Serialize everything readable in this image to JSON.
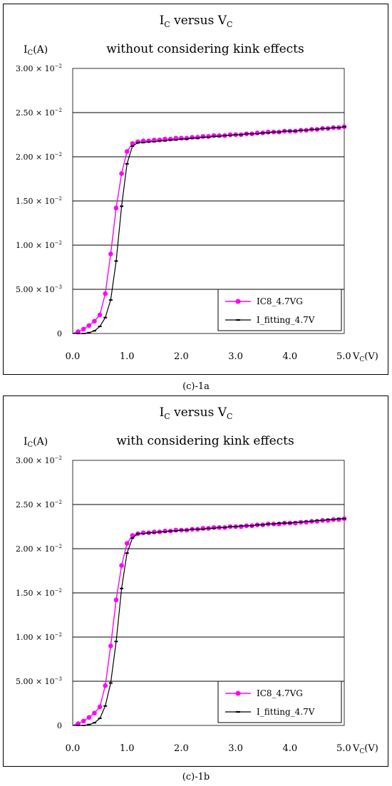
{
  "chart_data": [
    {
      "type": "line",
      "title_main": "I",
      "title_sub1": "C",
      "title_mid": " versus V",
      "title_sub2": "C",
      "subtitle": "without considering kink effects",
      "ylabel_main": "I",
      "ylabel_sub": "C",
      "ylabel_unit": "(A)",
      "xlabel_main": "V",
      "xlabel_sub": "C",
      "xlabel_unit": "(V)",
      "xlim": [
        0,
        5
      ],
      "ylim": [
        0,
        0.03
      ],
      "yticks": [
        {
          "value": 0,
          "label_main": "0",
          "label_exp": ""
        },
        {
          "value": 0.005,
          "label_main": "5.00 × 10",
          "label_exp": "−3"
        },
        {
          "value": 0.01,
          "label_main": "1.00 × 10",
          "label_exp": "−2"
        },
        {
          "value": 0.015,
          "label_main": "1.50 × 10",
          "label_exp": "−2"
        },
        {
          "value": 0.02,
          "label_main": "2.00 × 10",
          "label_exp": "−2"
        },
        {
          "value": 0.025,
          "label_main": "2.50 × 10",
          "label_exp": "−2"
        },
        {
          "value": 0.03,
          "label_main": "3.00 × 10",
          "label_exp": "−2"
        }
      ],
      "xticks": [
        {
          "value": 0,
          "label": "0.0"
        },
        {
          "value": 1,
          "label": "1.0"
        },
        {
          "value": 2,
          "label": "2.0"
        },
        {
          "value": 3,
          "label": "3.0"
        },
        {
          "value": 4,
          "label": "4.0"
        },
        {
          "value": 5,
          "label": "5.0"
        }
      ],
      "grid": "horizontal",
      "legend_position": "bottom-right",
      "series": [
        {
          "name": "IC8_4.7VG",
          "color": "#ff00ff",
          "marker": "circle",
          "x": [
            0.0,
            0.1,
            0.2,
            0.3,
            0.4,
            0.5,
            0.6,
            0.7,
            0.8,
            0.9,
            1.0,
            1.1,
            1.2,
            1.3,
            1.4,
            1.5,
            1.6,
            1.7,
            1.8,
            1.9,
            2.0,
            2.1,
            2.2,
            2.3,
            2.4,
            2.5,
            2.6,
            2.7,
            2.8,
            2.9,
            3.0,
            3.1,
            3.2,
            3.3,
            3.4,
            3.5,
            3.6,
            3.7,
            3.8,
            3.9,
            4.0,
            4.1,
            4.2,
            4.3,
            4.4,
            4.5,
            4.6,
            4.7,
            4.8,
            4.9,
            5.0
          ],
          "y": [
            0.0,
            0.0002,
            0.0005,
            0.0009,
            0.0014,
            0.0021,
            0.0045,
            0.009,
            0.0142,
            0.0181,
            0.0206,
            0.0215,
            0.0217,
            0.0218,
            0.0218,
            0.0219,
            0.0219,
            0.022,
            0.022,
            0.0221,
            0.0221,
            0.0221,
            0.0222,
            0.0222,
            0.0223,
            0.0223,
            0.0224,
            0.0224,
            0.0224,
            0.0225,
            0.0225,
            0.0225,
            0.0226,
            0.0226,
            0.0227,
            0.0227,
            0.0228,
            0.0228,
            0.0228,
            0.0229,
            0.0229,
            0.0229,
            0.023,
            0.023,
            0.0231,
            0.0231,
            0.0232,
            0.0232,
            0.0233,
            0.0233,
            0.0234
          ]
        },
        {
          "name": "I_fitting_4.7V",
          "color": "#000000",
          "marker": "dash",
          "x": [
            0.0,
            0.1,
            0.2,
            0.3,
            0.4,
            0.5,
            0.6,
            0.7,
            0.8,
            0.9,
            1.0,
            1.1,
            1.2,
            1.3,
            1.4,
            1.5,
            1.6,
            1.7,
            1.8,
            1.9,
            2.0,
            2.1,
            2.2,
            2.3,
            2.4,
            2.5,
            2.6,
            2.7,
            2.8,
            2.9,
            3.0,
            3.1,
            3.2,
            3.3,
            3.4,
            3.5,
            3.6,
            3.7,
            3.8,
            3.9,
            4.0,
            4.1,
            4.2,
            4.3,
            4.4,
            4.5,
            4.6,
            4.7,
            4.8,
            4.9,
            5.0
          ],
          "y": [
            0.0,
            0.0,
            0.0,
            0.0001,
            0.0003,
            0.0008,
            0.0018,
            0.0038,
            0.0082,
            0.0144,
            0.0192,
            0.0212,
            0.0216,
            0.0216,
            0.0217,
            0.0217,
            0.0218,
            0.0218,
            0.0219,
            0.0219,
            0.022,
            0.022,
            0.0221,
            0.0221,
            0.0222,
            0.0222,
            0.0223,
            0.0223,
            0.0224,
            0.0224,
            0.0225,
            0.0225,
            0.0226,
            0.0226,
            0.0226,
            0.0227,
            0.0227,
            0.0228,
            0.0228,
            0.0229,
            0.0229,
            0.0229,
            0.023,
            0.023,
            0.0231,
            0.0231,
            0.0232,
            0.0232,
            0.0233,
            0.0233,
            0.0234
          ]
        }
      ],
      "caption": "(c)-1a"
    },
    {
      "type": "line",
      "title_main": "I",
      "title_sub1": "C",
      "title_mid": " versus V",
      "title_sub2": "C",
      "subtitle": "with considering kink effects",
      "ylabel_main": "I",
      "ylabel_sub": "C",
      "ylabel_unit": "(A)",
      "xlabel_main": "V",
      "xlabel_sub": "C",
      "xlabel_unit": "(V)",
      "xlim": [
        0,
        5
      ],
      "ylim": [
        0,
        0.03
      ],
      "yticks": [
        {
          "value": 0,
          "label_main": "0",
          "label_exp": ""
        },
        {
          "value": 0.005,
          "label_main": "5.00 × 10",
          "label_exp": "−3"
        },
        {
          "value": 0.01,
          "label_main": "1.00 × 10",
          "label_exp": "−2"
        },
        {
          "value": 0.015,
          "label_main": "1.50 × 10",
          "label_exp": "−2"
        },
        {
          "value": 0.02,
          "label_main": "2.00 × 10",
          "label_exp": "−2"
        },
        {
          "value": 0.025,
          "label_main": "2.50 × 10",
          "label_exp": "−2"
        },
        {
          "value": 0.03,
          "label_main": "3.00 × 10",
          "label_exp": "−2"
        }
      ],
      "xticks": [
        {
          "value": 0,
          "label": "0.0"
        },
        {
          "value": 1,
          "label": "1.0"
        },
        {
          "value": 2,
          "label": "2.0"
        },
        {
          "value": 3,
          "label": "3.0"
        },
        {
          "value": 4,
          "label": "4.0"
        },
        {
          "value": 5,
          "label": "5.0"
        }
      ],
      "grid": "horizontal",
      "legend_position": "bottom-right",
      "series": [
        {
          "name": "IC8_4.7VG",
          "color": "#ff00ff",
          "marker": "circle",
          "x": [
            0.0,
            0.1,
            0.2,
            0.3,
            0.4,
            0.5,
            0.6,
            0.7,
            0.8,
            0.9,
            1.0,
            1.1,
            1.2,
            1.3,
            1.4,
            1.5,
            1.6,
            1.7,
            1.8,
            1.9,
            2.0,
            2.1,
            2.2,
            2.3,
            2.4,
            2.5,
            2.6,
            2.7,
            2.8,
            2.9,
            3.0,
            3.1,
            3.2,
            3.3,
            3.4,
            3.5,
            3.6,
            3.7,
            3.8,
            3.9,
            4.0,
            4.1,
            4.2,
            4.3,
            4.4,
            4.5,
            4.6,
            4.7,
            4.8,
            4.9,
            5.0
          ],
          "y": [
            0.0,
            0.0002,
            0.0005,
            0.0009,
            0.0014,
            0.0021,
            0.0045,
            0.009,
            0.0142,
            0.0181,
            0.0206,
            0.0215,
            0.0217,
            0.0218,
            0.0218,
            0.0219,
            0.0219,
            0.022,
            0.022,
            0.0221,
            0.0221,
            0.0221,
            0.0222,
            0.0222,
            0.0223,
            0.0223,
            0.0224,
            0.0224,
            0.0224,
            0.0225,
            0.0225,
            0.0225,
            0.0226,
            0.0226,
            0.0227,
            0.0227,
            0.0228,
            0.0228,
            0.0228,
            0.0229,
            0.0229,
            0.0229,
            0.023,
            0.023,
            0.0231,
            0.0231,
            0.0232,
            0.0232,
            0.0233,
            0.0233,
            0.0234
          ]
        },
        {
          "name": "I_fitting_4.7V",
          "color": "#000000",
          "marker": "dash",
          "x": [
            0.0,
            0.1,
            0.2,
            0.3,
            0.4,
            0.5,
            0.6,
            0.7,
            0.8,
            0.9,
            1.0,
            1.1,
            1.2,
            1.3,
            1.4,
            1.5,
            1.6,
            1.7,
            1.8,
            1.9,
            2.0,
            2.1,
            2.2,
            2.3,
            2.4,
            2.5,
            2.6,
            2.7,
            2.8,
            2.9,
            3.0,
            3.1,
            3.2,
            3.3,
            3.4,
            3.5,
            3.6,
            3.7,
            3.8,
            3.9,
            4.0,
            4.1,
            4.2,
            4.3,
            4.4,
            4.5,
            4.6,
            4.7,
            4.8,
            4.9,
            5.0
          ],
          "y": [
            0.0,
            0.0,
            0.0,
            0.0001,
            0.0003,
            0.0008,
            0.0022,
            0.0048,
            0.0095,
            0.0155,
            0.0195,
            0.0212,
            0.0217,
            0.0217,
            0.0218,
            0.0218,
            0.0219,
            0.0219,
            0.022,
            0.022,
            0.0221,
            0.0221,
            0.0222,
            0.0222,
            0.0222,
            0.0223,
            0.0223,
            0.0224,
            0.0224,
            0.0225,
            0.0225,
            0.0226,
            0.0226,
            0.0226,
            0.0227,
            0.0227,
            0.0228,
            0.0228,
            0.0229,
            0.0229,
            0.0229,
            0.023,
            0.023,
            0.0231,
            0.0231,
            0.0232,
            0.0232,
            0.0233,
            0.0233,
            0.0234,
            0.0234
          ]
        }
      ],
      "caption": "(c)-1b"
    }
  ]
}
